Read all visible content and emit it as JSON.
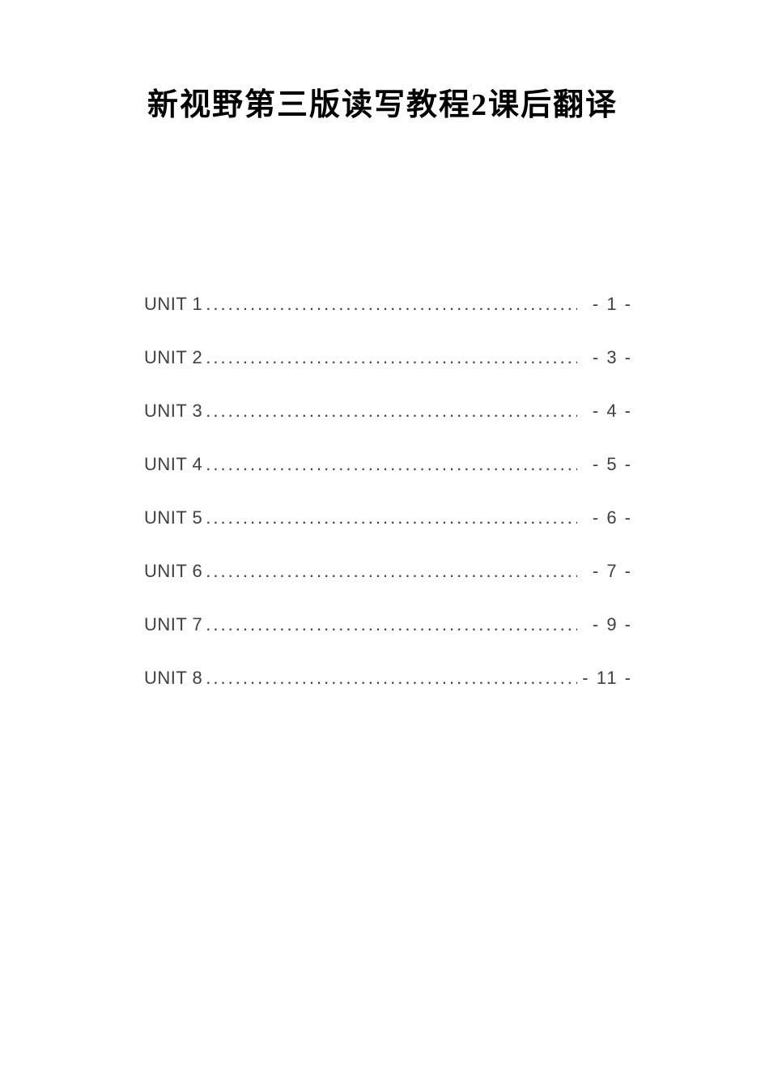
{
  "document": {
    "title": "新视野第三版读写教程2课后翻译",
    "title_fontsize": 38,
    "title_color": "#000000",
    "background_color": "#ffffff",
    "toc_text_color": "#404040",
    "toc_fontsize": 22,
    "toc_line_spacing": 40,
    "entries": [
      {
        "label": "UNIT 1",
        "page": "- 1 -"
      },
      {
        "label": "UNIT 2",
        "page": "- 3 -"
      },
      {
        "label": "UNIT 3",
        "page": "- 4 -"
      },
      {
        "label": "UNIT 4",
        "page": "- 5 -"
      },
      {
        "label": "UNIT 5",
        "page": "- 6 -"
      },
      {
        "label": "UNIT 6",
        "page": "- 7 -"
      },
      {
        "label": "UNIT 7",
        "page": "- 9 -"
      },
      {
        "label": "UNIT 8",
        "page": "- 11 -"
      }
    ]
  }
}
